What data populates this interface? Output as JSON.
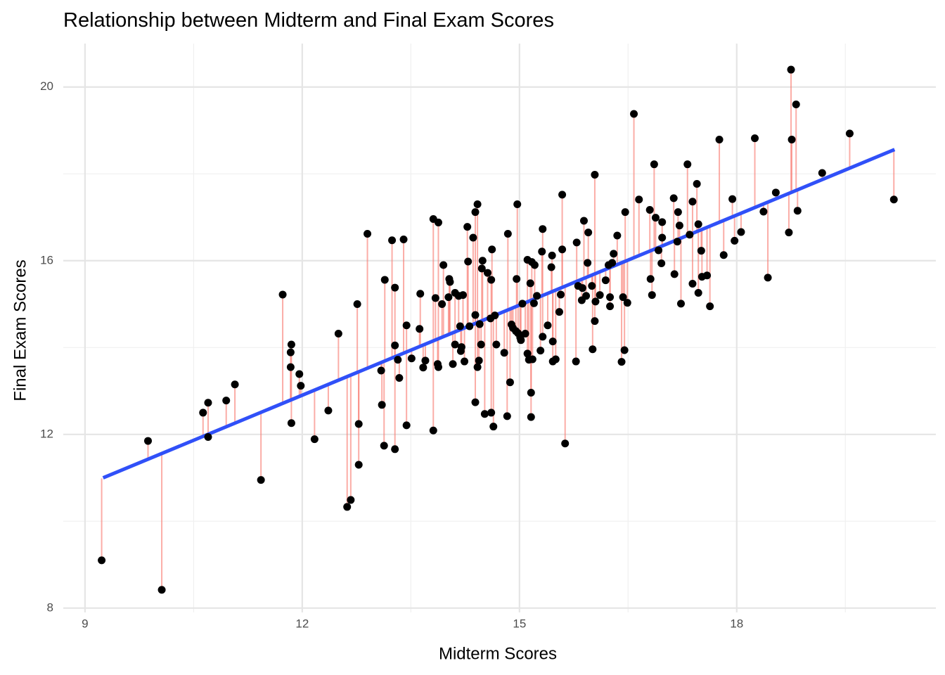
{
  "chart_data": {
    "type": "scatter",
    "title": "Relationship between Midterm and Final Exam Scores",
    "x_label": "Midterm Scores",
    "y_label": "Final Exam Scores",
    "xlim": [
      8.7,
      20.75
    ],
    "ylim": [
      7.9,
      21
    ],
    "xticks": [
      9,
      12,
      15,
      18
    ],
    "yticks": [
      8,
      12,
      16,
      20
    ],
    "xminor": [
      10.5,
      13.5,
      16.5,
      19.5
    ],
    "yminor": [
      10,
      14,
      18
    ],
    "grid": true,
    "color": "#000000",
    "residual_color": "#f8766d",
    "fit_line": {
      "color": "#3050f8",
      "x": [
        9.25,
        20.18
      ],
      "y": [
        11.0,
        18.56
      ]
    },
    "x": [
      9.23,
      9.87,
      10.06,
      10.63,
      10.7,
      10.7,
      10.95,
      11.07,
      11.43,
      11.73,
      11.85,
      11.84,
      11.84,
      11.85,
      11.96,
      11.98,
      12.17,
      12.36,
      12.5,
      12.62,
      12.67,
      12.76,
      12.78,
      12.78,
      12.9,
      13.09,
      13.1,
      13.13,
      13.14,
      13.24,
      13.28,
      13.28,
      13.28,
      13.32,
      13.34,
      13.4,
      13.44,
      13.44,
      13.51,
      13.62,
      13.63,
      13.67,
      13.7,
      13.81,
      13.81,
      13.84,
      13.87,
      13.88,
      13.88,
      13.93,
      13.95,
      14.02,
      14.03,
      14.04,
      14.08,
      14.11,
      14.11,
      14.16,
      14.18,
      14.19,
      14.2,
      14.22,
      14.24,
      14.28,
      14.29,
      14.31,
      14.36,
      14.39,
      14.39,
      14.39,
      14.42,
      14.42,
      14.44,
      14.45,
      14.47,
      14.48,
      14.49,
      14.52,
      14.56,
      14.6,
      14.61,
      14.61,
      14.62,
      14.64,
      14.66,
      14.68,
      14.79,
      14.83,
      14.84,
      14.87,
      14.89,
      14.91,
      14.95,
      14.96,
      14.97,
      14.98,
      15.01,
      15.02,
      15.04,
      15.08,
      15.11,
      15.11,
      15.13,
      15.15,
      15.16,
      15.16,
      15.17,
      15.18,
      15.2,
      15.21,
      15.24,
      15.29,
      15.31,
      15.32,
      15.32,
      15.39,
      15.44,
      15.45,
      15.46,
      15.46,
      15.5,
      15.55,
      15.57,
      15.59,
      15.59,
      15.63,
      15.78,
      15.79,
      15.81,
      15.86,
      15.87,
      15.89,
      15.92,
      15.94,
      15.95,
      16.0,
      16.01,
      16.04,
      16.05,
      16.04,
      16.11,
      16.19,
      16.23,
      16.25,
      16.25,
      16.28,
      16.3,
      16.35,
      16.41,
      16.43,
      16.45,
      16.46,
      16.49,
      16.58,
      16.65,
      16.8,
      16.81,
      16.83,
      16.86,
      16.88,
      16.92,
      16.97,
      16.96,
      16.97,
      17.13,
      17.14,
      17.18,
      17.19,
      17.21,
      17.23,
      17.32,
      17.35,
      17.39,
      17.39,
      17.45,
      17.47,
      17.47,
      17.51,
      17.52,
      17.59,
      17.63,
      17.76,
      17.82,
      17.94,
      17.97,
      18.06,
      18.25,
      18.37,
      18.43,
      18.54,
      18.72,
      18.75,
      18.76,
      18.82,
      18.84,
      19.18,
      19.56,
      20.17
    ],
    "values": [
      9.1,
      11.85,
      8.42,
      12.5,
      12.73,
      11.94,
      12.78,
      13.15,
      10.95,
      15.22,
      14.07,
      13.89,
      13.55,
      12.26,
      13.39,
      13.12,
      11.89,
      12.55,
      14.32,
      10.33,
      10.49,
      15.0,
      12.24,
      11.3,
      16.62,
      13.47,
      12.68,
      11.74,
      15.56,
      16.47,
      15.38,
      14.05,
      11.66,
      13.72,
      13.3,
      16.49,
      14.51,
      12.21,
      13.75,
      14.43,
      15.24,
      13.54,
      13.7,
      16.96,
      12.09,
      15.14,
      13.62,
      13.55,
      16.88,
      15.0,
      15.9,
      15.16,
      15.58,
      15.51,
      13.62,
      15.26,
      14.07,
      15.19,
      14.49,
      13.92,
      14.01,
      15.21,
      13.68,
      16.78,
      15.98,
      14.49,
      16.53,
      17.12,
      14.75,
      12.74,
      17.3,
      13.55,
      13.7,
      14.54,
      14.07,
      15.82,
      16.0,
      12.47,
      15.72,
      14.67,
      15.56,
      12.5,
      16.26,
      12.18,
      14.74,
      14.07,
      13.88,
      12.42,
      16.62,
      13.2,
      14.53,
      14.45,
      14.38,
      15.58,
      17.3,
      14.33,
      14.23,
      14.17,
      15.01,
      14.32,
      16.02,
      13.86,
      13.72,
      15.48,
      12.4,
      12.96,
      15.97,
      13.73,
      15.02,
      15.9,
      15.19,
      13.93,
      16.21,
      14.25,
      16.73,
      14.51,
      15.85,
      16.12,
      14.14,
      13.68,
      13.73,
      14.82,
      15.22,
      16.26,
      17.52,
      11.79,
      13.68,
      16.42,
      15.42,
      15.09,
      15.37,
      16.92,
      15.19,
      15.95,
      16.65,
      15.42,
      13.96,
      14.61,
      15.06,
      17.98,
      15.21,
      15.55,
      15.9,
      14.95,
      15.16,
      15.95,
      16.16,
      16.58,
      13.67,
      15.16,
      13.94,
      17.12,
      15.03,
      19.38,
      17.41,
      17.17,
      15.58,
      15.21,
      18.22,
      16.99,
      16.24,
      16.53,
      15.94,
      16.89,
      17.44,
      15.69,
      16.44,
      17.12,
      16.81,
      15.01,
      18.22,
      16.6,
      17.36,
      15.47,
      17.77,
      16.84,
      15.26,
      16.23,
      15.63,
      15.66,
      14.95,
      18.79,
      16.13,
      17.42,
      16.46,
      16.66,
      18.82,
      17.13,
      15.61,
      17.57,
      16.65,
      20.4,
      18.79,
      19.6,
      17.15,
      18.02,
      18.93,
      17.41
    ]
  }
}
